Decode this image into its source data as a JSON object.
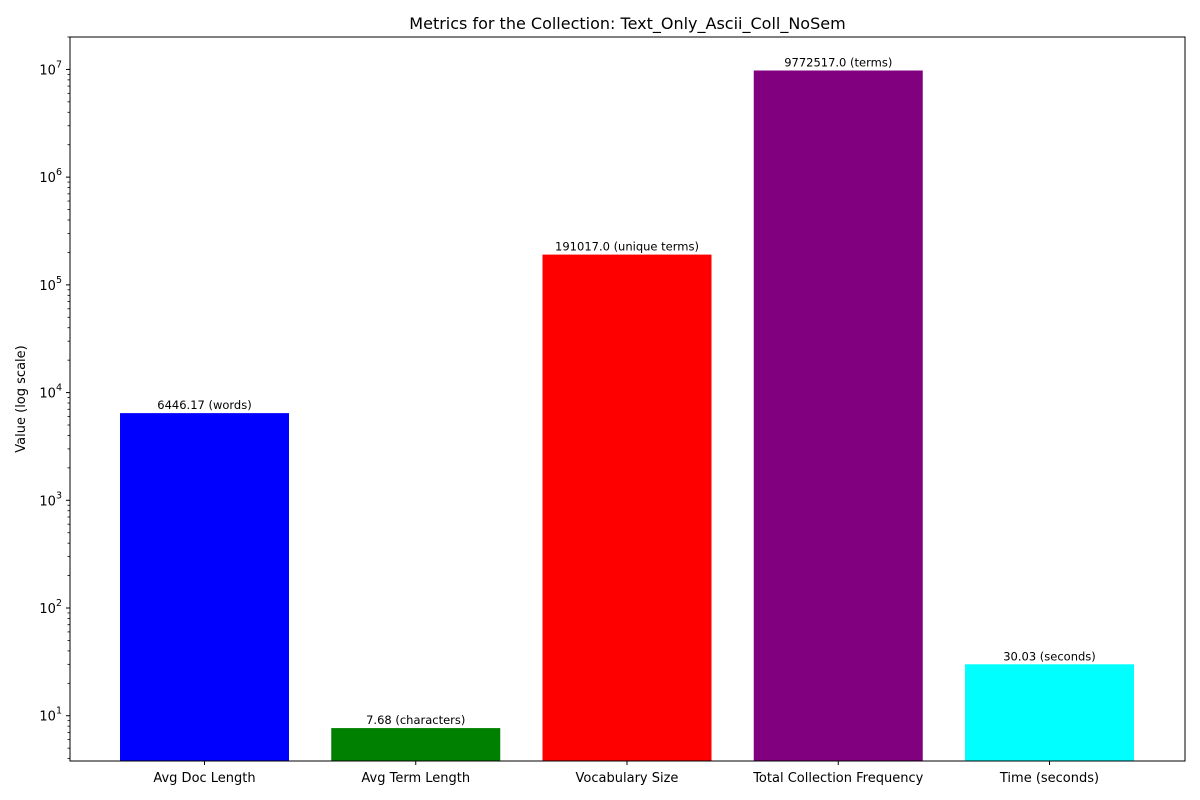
{
  "chart_data": {
    "type": "bar",
    "title": "Metrics for the Collection: Text_Only_Ascii_Coll_NoSem",
    "xlabel": "",
    "ylabel": "Value (log scale)",
    "yscale": "log",
    "ylim": [
      3.8,
      20000000
    ],
    "grid": false,
    "categories": [
      "Avg Doc Length",
      "Avg Term Length",
      "Vocabulary Size",
      "Total Collection Frequency",
      "Time (seconds)"
    ],
    "values": [
      6446.17,
      7.68,
      191017.0,
      9772517.0,
      30.03
    ],
    "value_labels": [
      "6446.17 (words)",
      "7.68 (characters)",
      "191017.0 (unique terms)",
      "9772517.0 (terms)",
      "30.03 (seconds)"
    ],
    "colors": [
      "#0000ff",
      "#008000",
      "#ff0000",
      "#800080",
      "#00ffff"
    ],
    "y_major_ticks": [
      {
        "value": 10,
        "base": "10",
        "exp": "1"
      },
      {
        "value": 100,
        "base": "10",
        "exp": "2"
      },
      {
        "value": 1000,
        "base": "10",
        "exp": "3"
      },
      {
        "value": 10000,
        "base": "10",
        "exp": "4"
      },
      {
        "value": 100000,
        "base": "10",
        "exp": "5"
      },
      {
        "value": 1000000,
        "base": "10",
        "exp": "6"
      },
      {
        "value": 10000000,
        "base": "10",
        "exp": "7"
      }
    ]
  }
}
